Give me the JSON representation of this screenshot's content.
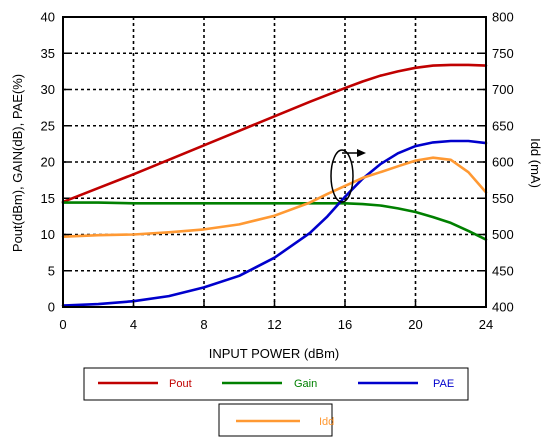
{
  "chart_data": {
    "type": "line",
    "title": "",
    "xlabel": "INPUT POWER (dBm)",
    "ylabel": "Pout(dBm), GAIN(dB), PAE(%)",
    "y2label": "Idd (mA)",
    "xlim": [
      0,
      24
    ],
    "ylim": [
      0,
      40
    ],
    "y2lim": [
      400,
      800
    ],
    "xticks": [
      "0",
      "4",
      "8",
      "12",
      "16",
      "20",
      "24"
    ],
    "yticks": [
      "0",
      "5",
      "10",
      "15",
      "20",
      "25",
      "30",
      "35",
      "40"
    ],
    "y2ticks": [
      "400",
      "450",
      "500",
      "550",
      "600",
      "650",
      "700",
      "750",
      "800"
    ],
    "grid": true,
    "legend_position": "bottom",
    "series": [
      {
        "name": "Pout",
        "color": "#c00000",
        "axis": "left",
        "x": [
          0,
          2,
          4,
          6,
          8,
          10,
          12,
          14,
          16,
          17,
          18,
          19,
          20,
          21,
          22,
          23,
          24
        ],
        "y": [
          14.5,
          16.4,
          18.3,
          20.3,
          22.3,
          24.3,
          26.3,
          28.3,
          30.2,
          31.1,
          31.9,
          32.5,
          33.0,
          33.3,
          33.4,
          33.4,
          33.3
        ]
      },
      {
        "name": "Gain",
        "color": "#008000",
        "axis": "left",
        "x": [
          0,
          2,
          4,
          6,
          8,
          10,
          12,
          14,
          16,
          17,
          18,
          19,
          20,
          21,
          22,
          23,
          24
        ],
        "y": [
          14.4,
          14.4,
          14.3,
          14.3,
          14.3,
          14.3,
          14.3,
          14.3,
          14.3,
          14.2,
          14.0,
          13.6,
          13.1,
          12.4,
          11.6,
          10.5,
          9.3
        ]
      },
      {
        "name": "PAE",
        "color": "#0000cc",
        "axis": "left",
        "x": [
          0,
          2,
          4,
          6,
          8,
          10,
          12,
          14,
          15,
          16,
          17,
          18,
          19,
          20,
          21,
          22,
          23,
          24
        ],
        "y": [
          0.2,
          0.4,
          0.8,
          1.5,
          2.7,
          4.3,
          6.8,
          10.2,
          12.5,
          15.2,
          17.7,
          19.7,
          21.2,
          22.2,
          22.7,
          22.9,
          22.9,
          22.6
        ]
      },
      {
        "name": "Idd",
        "color": "#ff9933",
        "axis": "right",
        "x": [
          0,
          2,
          4,
          6,
          8,
          10,
          12,
          14,
          15,
          16,
          17,
          18,
          19,
          20,
          21,
          22,
          23,
          24
        ],
        "y": [
          497,
          499,
          500,
          503,
          507,
          514,
          526,
          544,
          556,
          567,
          578,
          586,
          594,
          602,
          606,
          603,
          586,
          558
        ]
      }
    ],
    "annotation": "ellipse-with-arrow"
  }
}
